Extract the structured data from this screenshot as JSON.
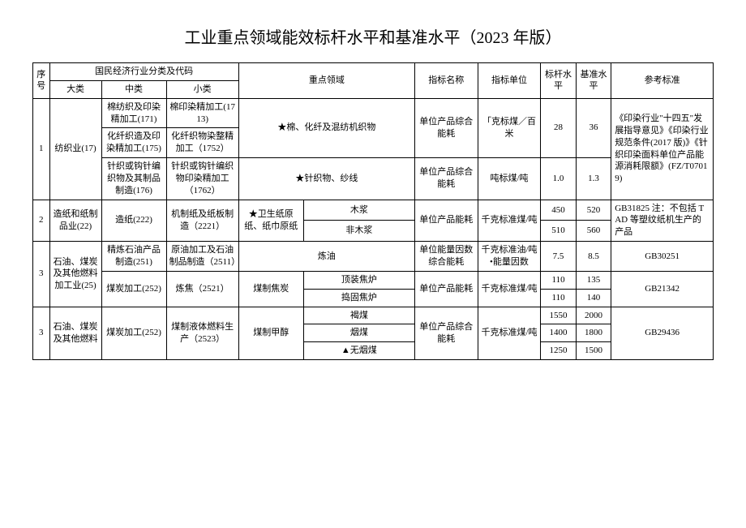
{
  "title": "工业重点领域能效标杆水平和基准水平（2023 年版）",
  "head": {
    "seq": "序号",
    "cls_group": "国民经济行业分类及代码",
    "da": "大类",
    "zhong": "中类",
    "xiao": "小类",
    "field": "重点领域",
    "indicator": "指标名称",
    "unit": "指标单位",
    "benchmark": "标杆水平",
    "baseline": "基准水平",
    "reference": "参考标准"
  },
  "r1": {
    "seq": "1",
    "da": "纺织业(17)",
    "zh1": "棉纺织及印染精加工(171)",
    "xi1": "棉印染精加工(1713)",
    "zh2": "化纤织造及印染精加工(175)",
    "xi2": "化纤织物染整精加工（1752）",
    "zh3": "针织或钩针编织物及其制品制造(176)",
    "xi3": "针织或钩针编织物印染精加工（1762）",
    "field1": "★棉、化纤及混纺机织物",
    "field2": "★针织物、纱线",
    "idx1": "单位产品综合能耗",
    "unit1": "「克标煤／百米",
    "bm1": "28",
    "base1": "36",
    "idx2": "单位产品综合能耗",
    "unit2": "吨标煤/吨",
    "bm2": "1.0",
    "base2": "1.3",
    "ref": "《印染行业\"十四五\"发展指导意见》《印染行业规范条件(2017 版)》《针织印染面料单位产品能源消耗限额》(FZ/T07019)"
  },
  "r2": {
    "seq": "2",
    "da": "造纸和纸制品业(22)",
    "zh": "造纸(222)",
    "xi": "机制纸及纸板制造（2221）",
    "f1": "★卫生纸原纸、纸巾原纸",
    "f2a": "木浆",
    "f2b": "非木浆",
    "idx": "单位产品能耗",
    "unit": "千克标准煤/吨",
    "bm1": "450",
    "base1": "520",
    "bm2": "510",
    "base2": "560",
    "ref": "GB31825 注：不包括 TAD 等塑纹纸机生产的产品"
  },
  "r3": {
    "seq": "3",
    "da": "石油、煤炭及其他燃料加工业(25)",
    "zh1": "精炼石油产品制造(251)",
    "xi1": "原油加工及石油制品制造（2511）",
    "field1": "炼油",
    "idx1": "单位能量因数综合能耗",
    "unit1": "千克标准油/吨•能量因数",
    "bm1": "7.5",
    "base1": "8.5",
    "ref1": "GB30251",
    "zh2": "煤炭加工(252)",
    "xi2": "炼焦（2521）",
    "f1_2": "煤制焦炭",
    "f2a": "顶装焦炉",
    "f2b": "捣固焦炉",
    "idx2": "单位产品能耗",
    "unit2": "千克标准煤/吨",
    "bm2a": "110",
    "base2a": "135",
    "bm2b": "110",
    "base2b": "140",
    "ref2": "GB21342"
  },
  "r4": {
    "seq": "3",
    "da": "石油、煤炭及其他燃料",
    "zh": "煤炭加工(252)",
    "xi": "煤制液体燃料生产（2523）",
    "f1": "煤制甲醇",
    "f2a": "褐煤",
    "f2b": "烟煤",
    "f2c": "▲无烟煤",
    "idx": "单位产品综合能耗",
    "unit": "千克标准煤/吨",
    "bm1": "1550",
    "base1": "2000",
    "bm2": "1400",
    "base2": "1800",
    "bm3": "1250",
    "base3": "1500",
    "ref": "GB29436"
  }
}
